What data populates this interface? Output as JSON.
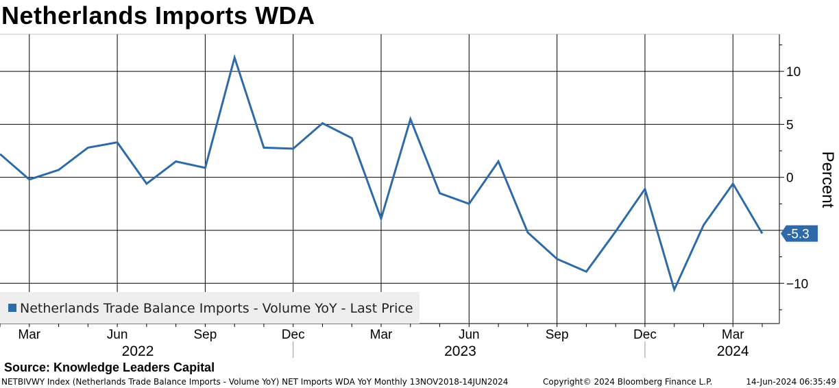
{
  "title": "Netherlands Imports WDA",
  "source": "Source: Knowledge Leaders Capital",
  "footer": {
    "index_desc": "NETBIVWY Index (Netherlands Trade Balance Imports - Volume YoY) NET Imports WDA YoY  Monthly 13NOV2018-14JUN2024",
    "copyright": "Copyright© 2024 Bloomberg Finance L.P.",
    "timestamp": "14-Jun-2024 06:35:49"
  },
  "colors": {
    "series": "#2e6aa8",
    "grid": "#000000",
    "legend_bg": "#eeeeee"
  },
  "chart_data": {
    "type": "line",
    "ylabel": "Percent",
    "ylim": [
      -13.8,
      13.5
    ],
    "yticks": [
      10,
      5,
      0,
      -5,
      -10
    ],
    "month_labels": [
      "Mar",
      "Jun",
      "Sep",
      "Dec",
      "Mar",
      "Jun",
      "Sep",
      "Dec",
      "Mar"
    ],
    "month_label_index": [
      1,
      4,
      7,
      10,
      13,
      16,
      19,
      22,
      25
    ],
    "year_labels": [
      "2022",
      "2023",
      "2024"
    ],
    "year_label_center": [
      4.7,
      15.7,
      25.0
    ],
    "year_separators": [
      10,
      22
    ],
    "series": [
      {
        "name": "Netherlands Trade Balance Imports - Volume YoY - Last Price",
        "legend": "Netherlands Trade Balance Imports - Volume YoY - Last Price",
        "x": [
          "Feb 2022",
          "Mar 2022",
          "Apr 2022",
          "May 2022",
          "Jun 2022",
          "Jul 2022",
          "Aug 2022",
          "Sep 2022",
          "Oct 2022",
          "Nov 2022",
          "Dec 2022",
          "Jan 2023",
          "Feb 2023",
          "Mar 2023",
          "Apr 2023",
          "May 2023",
          "Jun 2023",
          "Jul 2023",
          "Aug 2023",
          "Sep 2023",
          "Oct 2023",
          "Nov 2023",
          "Dec 2023",
          "Jan 2024",
          "Feb 2024",
          "Mar 2024",
          "Apr 2024"
        ],
        "values": [
          2.2,
          -0.2,
          0.7,
          2.8,
          3.3,
          -0.6,
          1.5,
          0.9,
          11.3,
          2.8,
          2.7,
          5.1,
          3.7,
          -3.9,
          5.5,
          -1.5,
          -2.5,
          1.5,
          -5.2,
          -7.7,
          -8.9,
          -5.1,
          -1.1,
          -10.6,
          -4.5,
          -0.6,
          -5.3
        ],
        "last_value_label": "-5.3"
      }
    ]
  }
}
